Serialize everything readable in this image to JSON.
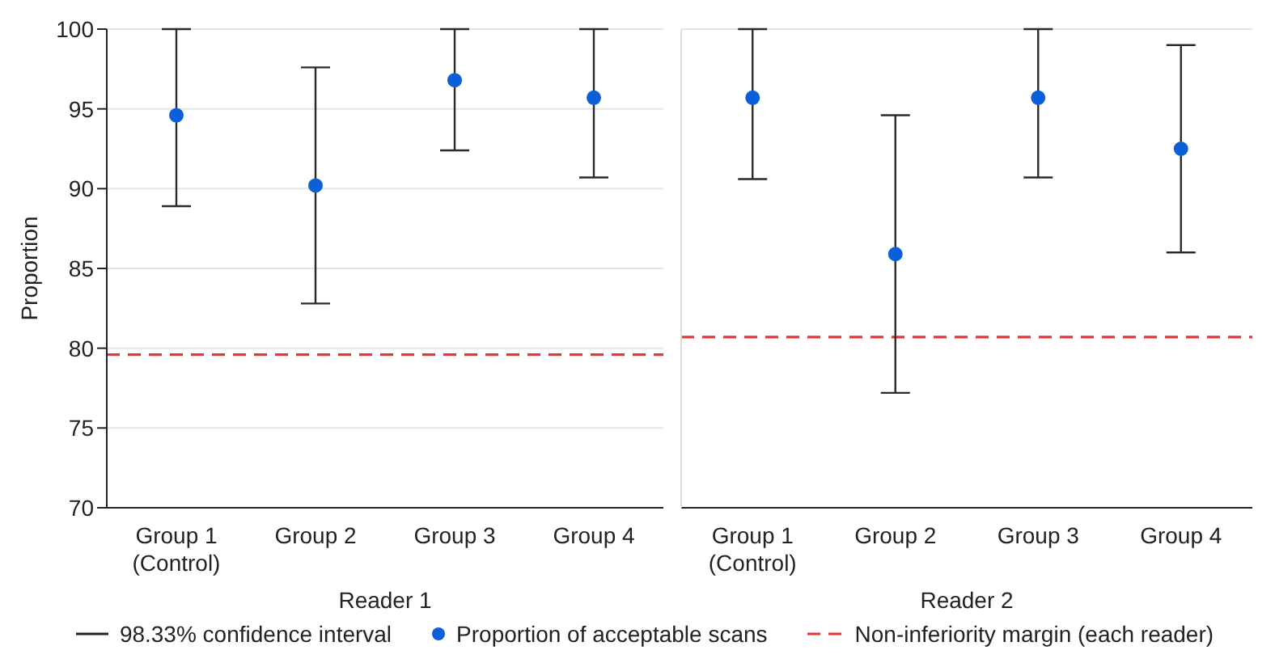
{
  "chart_data": [
    {
      "type": "scatter",
      "xlabel": "Reader 1",
      "ylabel": "Proportion",
      "categories": [
        "Group 1 (Control)",
        "Group 2",
        "Group 3",
        "Group 4"
      ],
      "series": [
        {
          "name": "Proportion of acceptable scans",
          "color": "#0b5fd8",
          "values": [
            94.6,
            90.2,
            96.8,
            95.7
          ],
          "errors": [
            [
              88.9,
              100
            ],
            [
              82.8,
              97.6
            ],
            [
              92.4,
              100
            ],
            [
              90.7,
              100
            ]
          ]
        }
      ],
      "ylim": [
        70,
        100
      ],
      "yticks": [
        70,
        75,
        80,
        85,
        90,
        95,
        100
      ],
      "grid": "y",
      "marker": "circle",
      "legend": "bottom",
      "ref_lines": [
        {
          "axis": "y",
          "value": 79.6,
          "label": "Non-inferiority margin (each reader)",
          "color": "#e8353b",
          "line_style": "dashed"
        }
      ],
      "annotations": [
        "98.33% confidence interval"
      ]
    },
    {
      "type": "scatter",
      "xlabel": "Reader 2",
      "categories": [
        "Group 1 (Control)",
        "Group 2",
        "Group 3",
        "Group 4"
      ],
      "series": [
        {
          "color": "#0b5fd8",
          "values": [
            95.7,
            85.9,
            95.7,
            92.5
          ],
          "errors": [
            [
              90.6,
              100
            ],
            [
              77.2,
              94.6
            ],
            [
              90.7,
              100
            ],
            [
              86.0,
              99.0
            ]
          ]
        }
      ],
      "ylim": [
        70,
        100
      ],
      "yticks": [
        70,
        75,
        80,
        85,
        90,
        95,
        100
      ],
      "grid": "y",
      "marker": "circle",
      "tick_labels": "x",
      "ref_lines": [
        {
          "axis": "y",
          "value": 80.7,
          "color": "#e8353b",
          "line_style": "dashed"
        }
      ]
    }
  ]
}
